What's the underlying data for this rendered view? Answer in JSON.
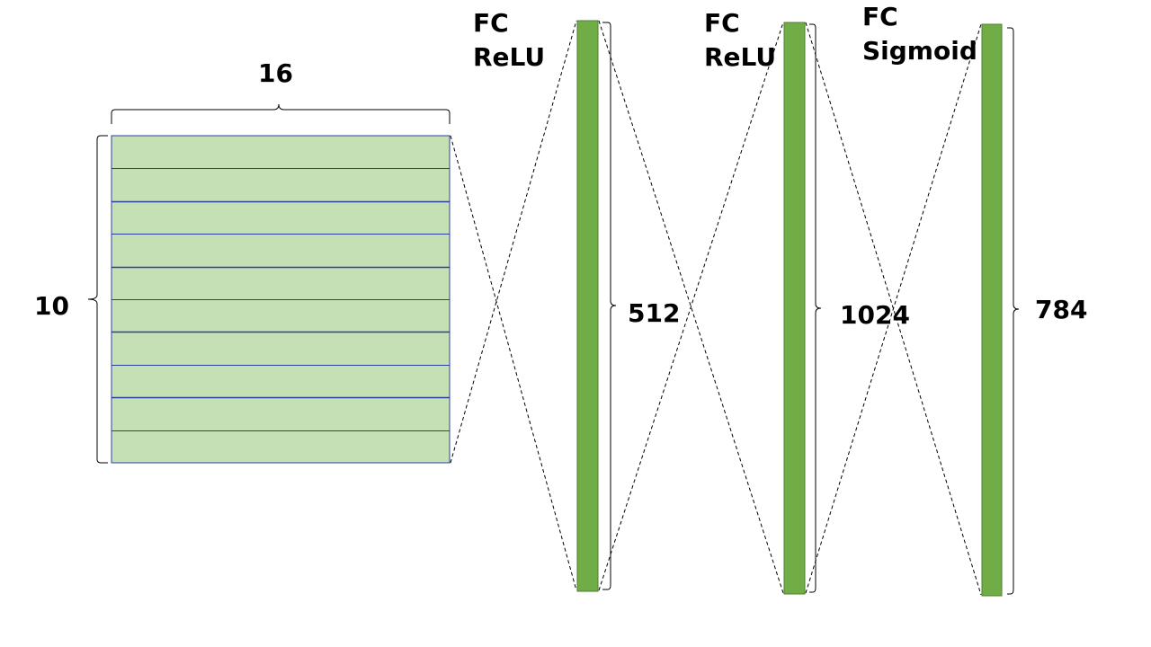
{
  "colors": {
    "grid_fill": "#c5e0b4",
    "grid_line": "#2f3f9f",
    "layer_fill": "#70ad47",
    "layer_stroke": "#507e32",
    "line": "#000000"
  },
  "input": {
    "width_label": "16",
    "height_label": "10",
    "row_count": 10
  },
  "layers": [
    {
      "type": "FC",
      "activation": "ReLU",
      "size_label": "512"
    },
    {
      "type": "FC",
      "activation": "ReLU",
      "size_label": "1024"
    },
    {
      "type": "FC",
      "activation": "Sigmoid",
      "size_label": "784"
    }
  ]
}
